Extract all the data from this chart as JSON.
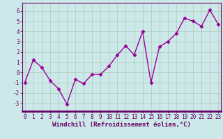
{
  "x": [
    0,
    1,
    2,
    3,
    4,
    5,
    6,
    7,
    8,
    9,
    10,
    11,
    12,
    13,
    14,
    15,
    16,
    17,
    18,
    19,
    20,
    21,
    22,
    23
  ],
  "y": [
    -1,
    1.2,
    0.5,
    -0.8,
    -1.6,
    -3.1,
    -0.7,
    -1.1,
    -0.2,
    -0.2,
    0.6,
    1.7,
    2.6,
    1.7,
    4.0,
    -1.0,
    2.5,
    3.0,
    3.8,
    5.3,
    5.0,
    4.5,
    6.1,
    4.7
  ],
  "line_color": "#990099",
  "marker": "D",
  "marker_size": 2.5,
  "bg_color": "#cce8e8",
  "grid_color": "#aaccbb",
  "xlabel": "Windchill (Refroidissement éolien,°C)",
  "ylim": [
    -3.8,
    6.8
  ],
  "xlim": [
    -0.3,
    23.3
  ],
  "yticks": [
    -3,
    -2,
    -1,
    0,
    1,
    2,
    3,
    4,
    5,
    6
  ],
  "xticks": [
    0,
    1,
    2,
    3,
    4,
    5,
    6,
    7,
    8,
    9,
    10,
    11,
    12,
    13,
    14,
    15,
    16,
    17,
    18,
    19,
    20,
    21,
    22,
    23
  ],
  "tick_fontsize": 5.5,
  "xlabel_fontsize": 6.5,
  "spine_color": "#660066",
  "line_width": 1.0
}
